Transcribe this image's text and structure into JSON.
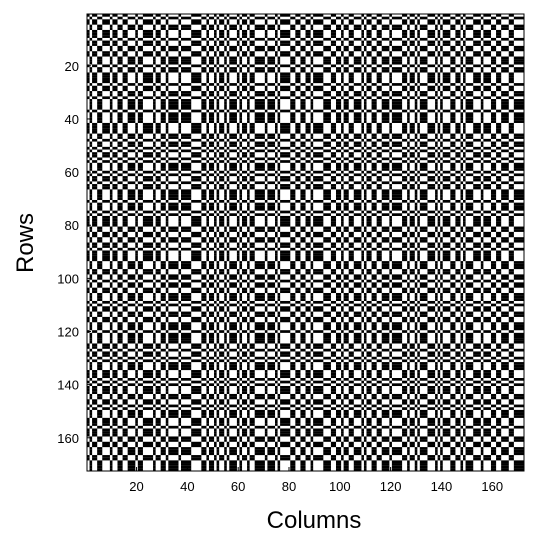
{
  "chart_data": {
    "type": "heatmap",
    "title": "",
    "xlabel": "Columns",
    "ylabel": "Rows",
    "rows": 172,
    "cols": 172,
    "xlim": [
      0.5,
      172.5
    ],
    "ylim": [
      0.5,
      172.5
    ],
    "y_reversed": true,
    "colormap": "binary",
    "colors": {
      "on": "#000000",
      "off": "#ffffff"
    },
    "xticks": [
      20,
      40,
      60,
      80,
      100,
      120,
      140,
      160
    ],
    "xtick_labels": [
      "20",
      "40",
      "60",
      "80",
      "100",
      "120",
      "140",
      "160"
    ],
    "yticks": [
      20,
      40,
      60,
      80,
      100,
      120,
      140,
      160
    ],
    "ytick_labels": [
      "20",
      "40",
      "60",
      "80",
      "100",
      "120",
      "140",
      "160"
    ],
    "values_description": "Binary 0/1 matrix; cell (r,c) is black when the row pattern bit and column pattern bit agree (r_bit XNOR c_bit), producing a symmetric plaid of black/white stripes",
    "row_pattern_seed": 12345,
    "col_pattern_seed": 12345,
    "grid": false
  }
}
